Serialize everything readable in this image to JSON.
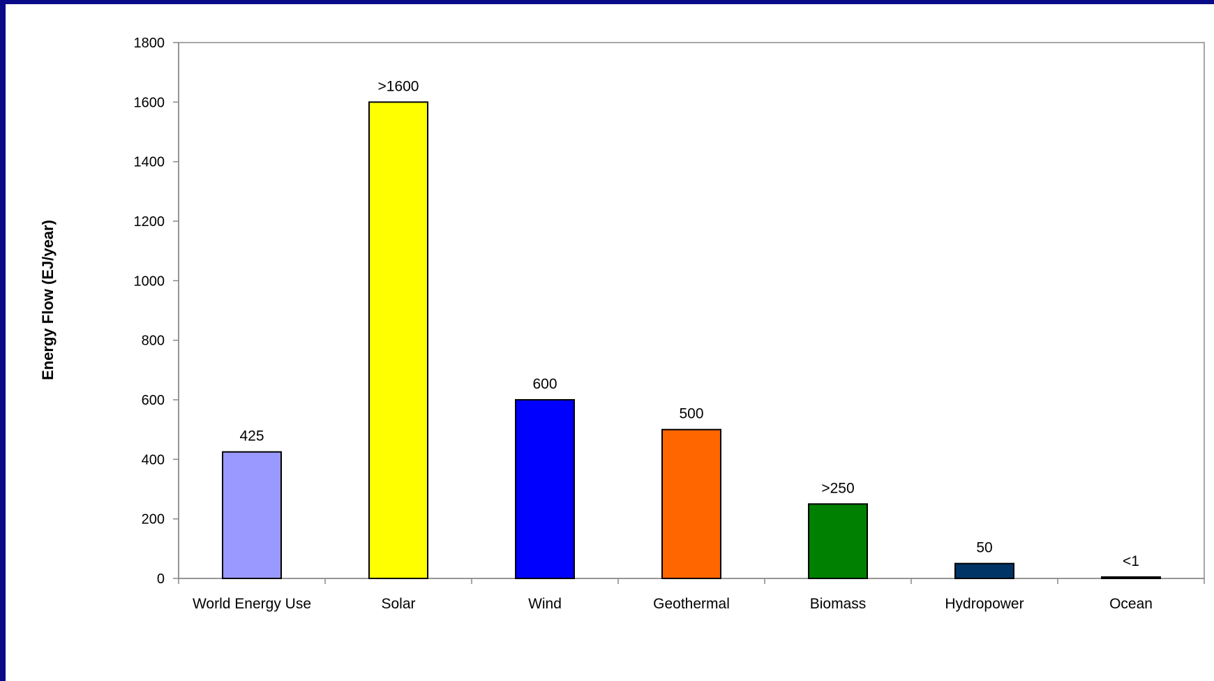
{
  "chart_data": {
    "type": "bar",
    "title": "",
    "xlabel": "",
    "ylabel": "Energy Flow (EJ/year)",
    "ylim": [
      0,
      1800
    ],
    "yticks": [
      0,
      200,
      400,
      600,
      800,
      1000,
      1200,
      1400,
      1600,
      1800
    ],
    "grid": false,
    "legend": "none",
    "categories": [
      "World Energy Use",
      "Solar",
      "Wind",
      "Geothermal",
      "Biomass",
      "Hydropower",
      "Ocean"
    ],
    "values": [
      425,
      1600,
      600,
      500,
      250,
      50,
      1
    ],
    "data_labels": [
      "425",
      ">1600",
      "600",
      "500",
      ">250",
      "50",
      "<1"
    ],
    "colors": [
      "#9999ff",
      "#ffff00",
      "#0000ff",
      "#ff6600",
      "#008000",
      "#003366",
      "#000080"
    ],
    "frame_color": "#0b0b8a"
  }
}
